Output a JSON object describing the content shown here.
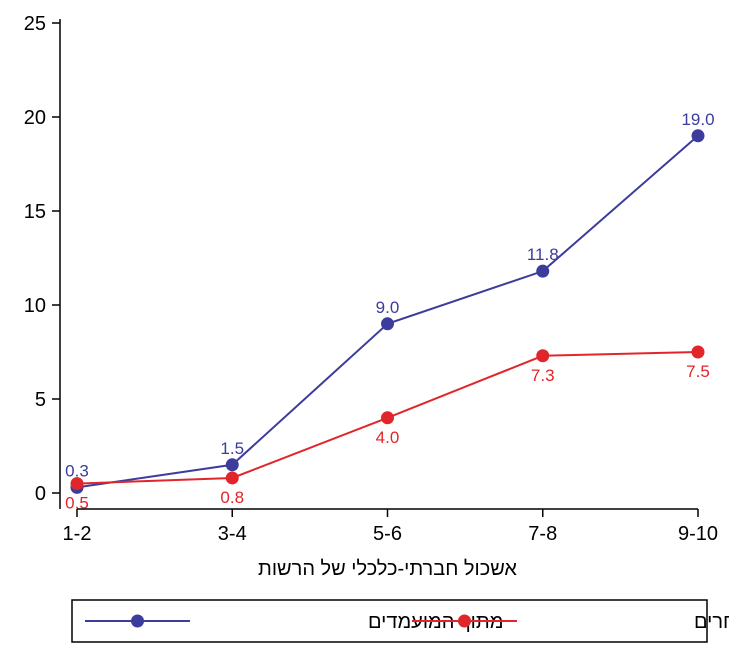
{
  "chart_data": {
    "type": "line",
    "categories": [
      "1-2",
      "3-4",
      "5-6",
      "7-8",
      "9-10"
    ],
    "xlabel": "אשכול חברתי-כלכלי של הרשות",
    "ylabel": "",
    "ylim": [
      0,
      25
    ],
    "yticks": [
      0,
      5,
      10,
      15,
      20,
      25
    ],
    "grid": false,
    "legend_position": "bottom",
    "series": [
      {
        "name": "מתוך המועמדים",
        "color": "#3c3c9c",
        "values": [
          0.3,
          1.5,
          9.0,
          11.8,
          19.0
        ],
        "labels": [
          "0.3",
          "1.5",
          "9.0",
          "11.8",
          "19.0"
        ],
        "label_position": "above"
      },
      {
        "name": "מתוך הנבחרים",
        "color": "#e0262a",
        "values": [
          0.5,
          0.8,
          4.0,
          7.3,
          7.5
        ],
        "labels": [
          "0.5",
          "0.8",
          "4.0",
          "7.3",
          "7.5"
        ],
        "label_position": "below"
      }
    ]
  }
}
